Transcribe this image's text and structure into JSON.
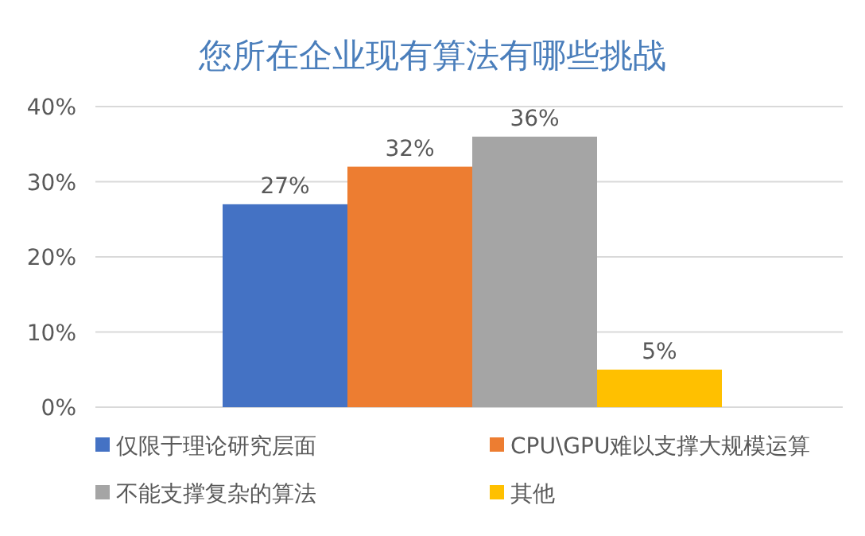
{
  "chart_data": {
    "type": "bar",
    "title": "您所在企业现有算法有哪些挑战",
    "categories": [
      null
    ],
    "series": [
      {
        "name": "仅限于理论研究层面",
        "color": "#4472c4",
        "values": [
          27
        ],
        "value_labels": [
          "27%"
        ]
      },
      {
        "name": "CPU\\GPU难以支撑大规模运算",
        "color": "#ed7d31",
        "values": [
          32
        ],
        "value_labels": [
          "32%"
        ]
      },
      {
        "name": "不能支撑复杂的算法",
        "color": "#a5a5a5",
        "values": [
          36
        ],
        "value_labels": [
          "36%"
        ]
      },
      {
        "name": "其他",
        "color": "#ffc000",
        "values": [
          5
        ],
        "value_labels": [
          "5%"
        ]
      }
    ],
    "ylim": [
      0,
      40
    ],
    "yticks": [
      {
        "value": 0,
        "label": "0%"
      },
      {
        "value": 10,
        "label": "10%"
      },
      {
        "value": 20,
        "label": "20%"
      },
      {
        "value": 30,
        "label": "30%"
      },
      {
        "value": 40,
        "label": "40%"
      }
    ],
    "grid": "y",
    "legend": "bottom"
  }
}
